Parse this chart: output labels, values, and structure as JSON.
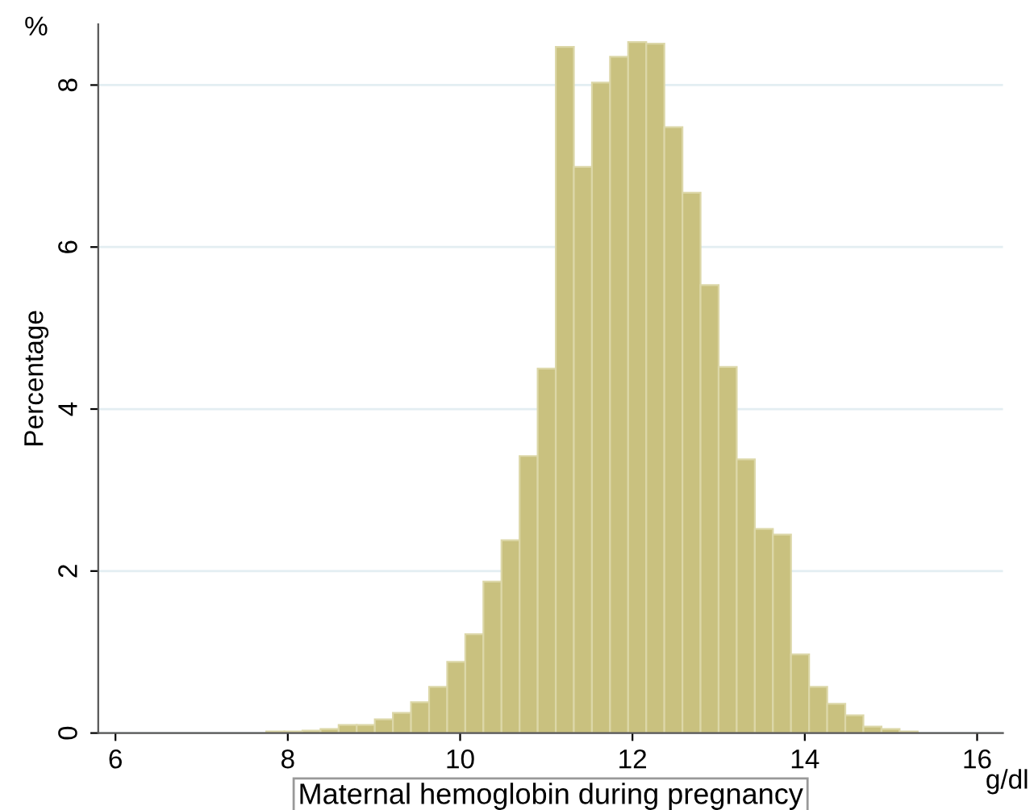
{
  "chart_data": {
    "type": "histogram",
    "ylabel": "Percentage",
    "xlabel": "Maternal hemoglobin during pregnancy",
    "annotations": [
      "%",
      "g/dl"
    ],
    "bins": [
      7.75,
      7.96,
      8.17,
      8.38,
      8.59,
      8.8,
      9.01,
      9.22,
      9.43,
      9.64,
      9.85,
      10.06,
      10.27,
      10.48,
      10.69,
      10.9,
      11.11,
      11.32,
      11.53,
      11.74,
      11.95,
      12.16,
      12.37,
      12.58,
      12.79,
      13.0,
      13.21,
      13.42,
      13.63,
      13.84,
      14.05,
      14.26,
      14.47,
      14.68,
      14.89,
      15.1,
      15.31,
      15.52
    ],
    "values": [
      0.02,
      0.02,
      0.03,
      0.05,
      0.1,
      0.1,
      0.17,
      0.25,
      0.38,
      0.57,
      0.88,
      1.22,
      1.87,
      2.38,
      3.42,
      4.5,
      8.47,
      6.99,
      8.03,
      8.35,
      8.53,
      8.51,
      7.48,
      6.67,
      5.53,
      4.52,
      3.38,
      2.52,
      2.45,
      0.97,
      0.57,
      0.36,
      0.22,
      0.08,
      0.05,
      0.02,
      null
    ],
    "color": "#c9c17f",
    "xlim": [
      5.8,
      16.3
    ],
    "xticks": [
      6,
      8,
      10,
      12,
      14,
      16
    ],
    "ylim": [
      0,
      8.75
    ],
    "yticks": [
      0,
      2,
      4,
      6,
      8
    ],
    "grid": "y",
    "legend": false
  }
}
